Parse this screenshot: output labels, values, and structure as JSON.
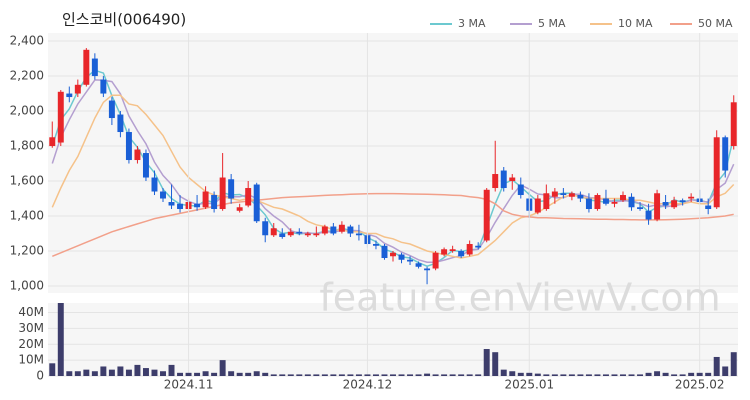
{
  "chart_data": [
    {
      "type": "candlestick",
      "title": "인스코비(006490)",
      "watermark": "feature.enViewV.com",
      "up_color": "#e8262a",
      "down_color": "#1a5fd6",
      "open": [
        1800,
        1820,
        2100,
        2100,
        2150,
        2300,
        2180,
        2060,
        1980,
        1880,
        1720,
        1760,
        1620,
        1540,
        1480,
        1470,
        1440,
        1470,
        1450,
        1520,
        1440,
        1610,
        1430,
        1460,
        1580,
        1370,
        1290,
        1300,
        1290,
        1310,
        1290,
        1290,
        1300,
        1340,
        1310,
        1340,
        1300,
        1290,
        1240,
        1230,
        1170,
        1180,
        1150,
        1130,
        1100,
        1100,
        1180,
        1200,
        1200,
        1180,
        1230,
        1260,
        1560,
        1660,
        1600,
        1580,
        1500,
        1420,
        1440,
        1510,
        1530,
        1510,
        1520,
        1500,
        1440,
        1500,
        1470,
        1490,
        1510,
        1450,
        1430,
        1380,
        1480,
        1450,
        1490,
        1500,
        1500,
        1460,
        1450,
        1850,
        1800
      ],
      "high": [
        1940,
        2120,
        2140,
        2180,
        2360,
        2330,
        2200,
        2080,
        2000,
        1900,
        1800,
        1780,
        1660,
        1560,
        1580,
        1520,
        1500,
        1520,
        1570,
        1540,
        1760,
        1640,
        1470,
        1600,
        1590,
        1390,
        1360,
        1330,
        1330,
        1330,
        1310,
        1340,
        1350,
        1360,
        1370,
        1350,
        1350,
        1300,
        1260,
        1240,
        1200,
        1190,
        1170,
        1140,
        1110,
        1200,
        1220,
        1230,
        1210,
        1260,
        1250,
        1560,
        1830,
        1680,
        1640,
        1620,
        1540,
        1520,
        1580,
        1560,
        1560,
        1540,
        1540,
        1530,
        1530,
        1550,
        1500,
        1540,
        1530,
        1480,
        1470,
        1550,
        1520,
        1510,
        1500,
        1530,
        1550,
        1500,
        1890,
        1860,
        2090
      ],
      "low": [
        1790,
        1800,
        2050,
        2080,
        2140,
        2180,
        2080,
        1920,
        1850,
        1700,
        1700,
        1600,
        1520,
        1480,
        1440,
        1420,
        1430,
        1430,
        1440,
        1420,
        1430,
        1470,
        1420,
        1450,
        1360,
        1250,
        1280,
        1270,
        1280,
        1290,
        1280,
        1280,
        1290,
        1290,
        1300,
        1280,
        1260,
        1220,
        1210,
        1150,
        1140,
        1130,
        1120,
        1100,
        1010,
        1090,
        1170,
        1190,
        1160,
        1170,
        1210,
        1250,
        1540,
        1540,
        1550,
        1500,
        1390,
        1410,
        1430,
        1470,
        1500,
        1490,
        1480,
        1420,
        1430,
        1460,
        1450,
        1480,
        1430,
        1430,
        1350,
        1370,
        1440,
        1440,
        1460,
        1480,
        1470,
        1410,
        1440,
        1620,
        1780
      ],
      "close": [
        1850,
        2110,
        2080,
        2150,
        2350,
        2200,
        2100,
        1960,
        1880,
        1720,
        1780,
        1620,
        1540,
        1500,
        1460,
        1440,
        1480,
        1450,
        1540,
        1440,
        1620,
        1500,
        1450,
        1560,
        1370,
        1290,
        1330,
        1280,
        1310,
        1300,
        1300,
        1300,
        1340,
        1300,
        1350,
        1300,
        1290,
        1240,
        1230,
        1160,
        1190,
        1150,
        1140,
        1110,
        1090,
        1190,
        1210,
        1210,
        1170,
        1240,
        1220,
        1550,
        1640,
        1560,
        1620,
        1520,
        1430,
        1500,
        1530,
        1540,
        1520,
        1530,
        1500,
        1440,
        1520,
        1470,
        1480,
        1520,
        1450,
        1440,
        1380,
        1530,
        1460,
        1490,
        1480,
        1510,
        1480,
        1440,
        1850,
        1660,
        2050
      ],
      "series": [
        {
          "name": "3 MA",
          "color": "#6cc9d0",
          "values": [
            1800,
            1950,
            2013,
            2113,
            2193,
            2233,
            2217,
            2087,
            1980,
            1853,
            1793,
            1707,
            1647,
            1553,
            1500,
            1467,
            1460,
            1457,
            1490,
            1477,
            1533,
            1520,
            1523,
            1503,
            1460,
            1407,
            1330,
            1300,
            1307,
            1297,
            1303,
            1300,
            1313,
            1313,
            1330,
            1317,
            1313,
            1277,
            1253,
            1210,
            1193,
            1167,
            1160,
            1133,
            1113,
            1130,
            1163,
            1203,
            1197,
            1207,
            1210,
            1337,
            1470,
            1583,
            1607,
            1567,
            1523,
            1483,
            1487,
            1523,
            1530,
            1530,
            1517,
            1490,
            1487,
            1477,
            1490,
            1490,
            1483,
            1470,
            1423,
            1450,
            1457,
            1493,
            1477,
            1493,
            1490,
            1477,
            1590,
            1650,
            1853
          ]
        },
        {
          "name": "5 MA",
          "color": "#b49fd0",
          "values": [
            1700,
            1850,
            1950,
            2040,
            2108,
            2178,
            2176,
            2168,
            2098,
            1972,
            1888,
            1812,
            1708,
            1632,
            1580,
            1512,
            1484,
            1466,
            1474,
            1470,
            1514,
            1510,
            1510,
            1522,
            1500,
            1442,
            1400,
            1366,
            1316,
            1302,
            1304,
            1298,
            1310,
            1308,
            1318,
            1318,
            1316,
            1296,
            1282,
            1244,
            1222,
            1194,
            1174,
            1150,
            1136,
            1136,
            1148,
            1162,
            1174,
            1204,
            1210,
            1278,
            1364,
            1442,
            1518,
            1578,
            1554,
            1526,
            1520,
            1504,
            1504,
            1524,
            1524,
            1506,
            1502,
            1492,
            1482,
            1486,
            1488,
            1472,
            1454,
            1464,
            1452,
            1460,
            1468,
            1494,
            1484,
            1480,
            1552,
            1588,
            1696
          ]
        },
        {
          "name": "10 MA",
          "color": "#f5c28a",
          "values": [
            1450,
            1560,
            1660,
            1740,
            1850,
            1960,
            2050,
            2090,
            2090,
            2040,
            2030,
            1980,
            1920,
            1860,
            1770,
            1680,
            1620,
            1580,
            1540,
            1520,
            1510,
            1500,
            1490,
            1500,
            1490,
            1470,
            1450,
            1440,
            1420,
            1400,
            1370,
            1350,
            1340,
            1320,
            1320,
            1310,
            1310,
            1300,
            1300,
            1280,
            1270,
            1250,
            1240,
            1220,
            1200,
            1190,
            1180,
            1170,
            1160,
            1170,
            1180,
            1220,
            1260,
            1310,
            1360,
            1390,
            1400,
            1420,
            1450,
            1480,
            1510,
            1520,
            1510,
            1500,
            1500,
            1500,
            1500,
            1500,
            1490,
            1490,
            1480,
            1470,
            1470,
            1470,
            1470,
            1480,
            1470,
            1470,
            1510,
            1530,
            1580
          ]
        },
        {
          "name": "50 MA",
          "color": "#f2a08a",
          "values": [
            1170,
            1190,
            1210,
            1230,
            1250,
            1270,
            1290,
            1310,
            1325,
            1340,
            1355,
            1370,
            1385,
            1395,
            1405,
            1415,
            1425,
            1435,
            1445,
            1455,
            1465,
            1475,
            1480,
            1485,
            1490,
            1495,
            1500,
            1505,
            1508,
            1510,
            1512,
            1515,
            1518,
            1520,
            1522,
            1524,
            1526,
            1527,
            1528,
            1528,
            1528,
            1527,
            1526,
            1525,
            1524,
            1523,
            1521,
            1519,
            1517,
            1510,
            1505,
            1495,
            1470,
            1430,
            1410,
            1400,
            1395,
            1390,
            1390,
            1388,
            1386,
            1385,
            1384,
            1383,
            1382,
            1381,
            1380,
            1380,
            1379,
            1378,
            1378,
            1378,
            1379,
            1380,
            1382,
            1384,
            1387,
            1390,
            1395,
            1400,
            1410
          ]
        }
      ],
      "ylim": [
        960,
        2446
      ],
      "yticks": [
        {
          "value": 1000,
          "label": "1,000"
        },
        {
          "value": 1200,
          "label": "1,200"
        },
        {
          "value": 1400,
          "label": "1,400"
        },
        {
          "value": 1600,
          "label": "1,600"
        },
        {
          "value": 1800,
          "label": "1,800"
        },
        {
          "value": 2000,
          "label": "2,000"
        },
        {
          "value": 2200,
          "label": "2,200"
        },
        {
          "value": 2400,
          "label": "2,400"
        }
      ],
      "grid": true,
      "legend": "top-right"
    },
    {
      "type": "bar",
      "color": "#3d3d6b",
      "categories": [
        null,
        null,
        null,
        null,
        null,
        null,
        null,
        null,
        null,
        null,
        null,
        null,
        null,
        null,
        null,
        null,
        "2024.11",
        null,
        null,
        null,
        null,
        null,
        null,
        null,
        null,
        null,
        null,
        null,
        null,
        null,
        null,
        null,
        null,
        null,
        null,
        null,
        null,
        "2024.12",
        null,
        null,
        null,
        null,
        null,
        null,
        null,
        null,
        null,
        null,
        null,
        null,
        null,
        null,
        null,
        null,
        null,
        null,
        "2025.01",
        null,
        null,
        null,
        null,
        null,
        null,
        null,
        null,
        null,
        null,
        null,
        null,
        null,
        null,
        null,
        null,
        null,
        null,
        null,
        "2025.02",
        null,
        null,
        null,
        null
      ],
      "values": [
        8000000,
        46000000,
        3000000,
        3000000,
        4000000,
        3000000,
        6000000,
        4000000,
        6000000,
        4000000,
        7000000,
        5000000,
        4000000,
        3000000,
        7000000,
        2000000,
        2000000,
        2000000,
        3000000,
        2000000,
        10000000,
        3000000,
        2000000,
        2000000,
        3000000,
        2000000,
        1000000,
        1000000,
        1000000,
        1000000,
        1000000,
        1000000,
        1000000,
        1000000,
        1000000,
        1000000,
        1000000,
        1000000,
        1000000,
        1000000,
        1000000,
        1000000,
        1000000,
        1000000,
        1500000,
        1000000,
        1000000,
        1000000,
        1000000,
        1000000,
        1000000,
        17000000,
        15000000,
        4000000,
        3000000,
        2000000,
        2000000,
        1500000,
        1000000,
        1000000,
        1000000,
        1000000,
        1000000,
        1000000,
        1000000,
        1000000,
        1000000,
        1000000,
        1000000,
        1000000,
        2000000,
        3000000,
        2000000,
        1000000,
        1000000,
        2000000,
        2000000,
        2000000,
        12000000,
        6000000,
        15000000
      ],
      "ylim": [
        0,
        46000000
      ],
      "yticks": [
        0,
        {
          "value": 10000000,
          "label": "10M"
        },
        {
          "value": 20000000,
          "label": "20M"
        },
        {
          "value": 30000000,
          "label": "30M"
        },
        {
          "value": 40000000,
          "label": "40M"
        }
      ],
      "grid": true
    }
  ]
}
